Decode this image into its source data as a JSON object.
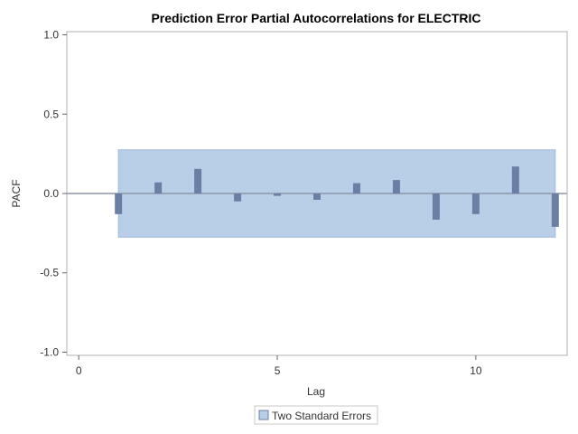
{
  "chart_data": {
    "type": "bar",
    "title": "Prediction Error Partial Autocorrelations for ELECTRIC",
    "xlabel": "Lag",
    "ylabel": "PACF",
    "xlim": [
      -0.3,
      12.3
    ],
    "ylim": [
      -1.02,
      1.02
    ],
    "x_ticks": [
      0,
      5,
      10
    ],
    "y_ticks": [
      -1.0,
      -0.5,
      0.0,
      0.5,
      1.0
    ],
    "y_tick_labels": [
      "-1.0",
      "-0.5",
      "0.0",
      "0.5",
      "1.0"
    ],
    "lags": [
      1,
      2,
      3,
      4,
      5,
      6,
      7,
      8,
      9,
      10,
      11,
      12
    ],
    "values": [
      -0.13,
      0.07,
      0.155,
      -0.05,
      -0.015,
      -0.04,
      0.065,
      0.085,
      -0.165,
      -0.13,
      0.17,
      -0.21
    ],
    "confidence_band": {
      "name": "Two Standard Errors",
      "lower": -0.275,
      "upper": 0.275,
      "x_start": 1,
      "x_end": 12
    },
    "grid": false,
    "legend_position": "bottom",
    "colors": {
      "bar": "#6b7fa5",
      "band": "#b9cfe8",
      "band_border": "#9fb8d8",
      "zero_line": "#8a97a8",
      "frame": "#b0b0b0"
    }
  }
}
